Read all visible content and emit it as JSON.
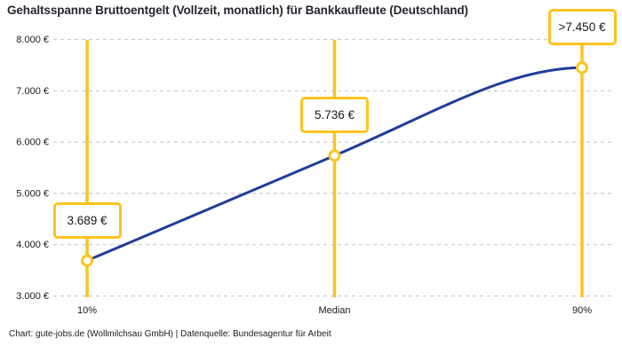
{
  "footer": "Chart: gute-jobs.de (Wollmilchsau GmbH) | Datenquelle: Bundesagentur für Arbeit",
  "chart_data": {
    "type": "line",
    "title": "Gehaltsspanne Bruttoentgelt (Vollzeit, monatlich) für Bankkaufleute (Deutschland)",
    "categories": [
      "10%",
      "Median",
      "90%"
    ],
    "values": [
      3689,
      5736,
      7450
    ],
    "point_labels": [
      "3.689 €",
      "5.736 €",
      ">7.450 €"
    ],
    "yticks": [
      3000,
      4000,
      5000,
      6000,
      7000,
      8000
    ],
    "ytick_labels": [
      "3.000 €",
      "4.000 €",
      "5.000 €",
      "6.000 €",
      "7.000 €",
      "8.000 €"
    ],
    "ylim": [
      3000,
      8000
    ],
    "xlabel": "",
    "ylabel": "",
    "grid": true,
    "legend": false,
    "colors": {
      "line": "#1f3d99",
      "accent": "#fcc41d",
      "grid": "#cccccc",
      "axis_text": "#1a1a1a",
      "label_box_bg": "#ffffff",
      "marker_fill": "#ffffff"
    }
  }
}
